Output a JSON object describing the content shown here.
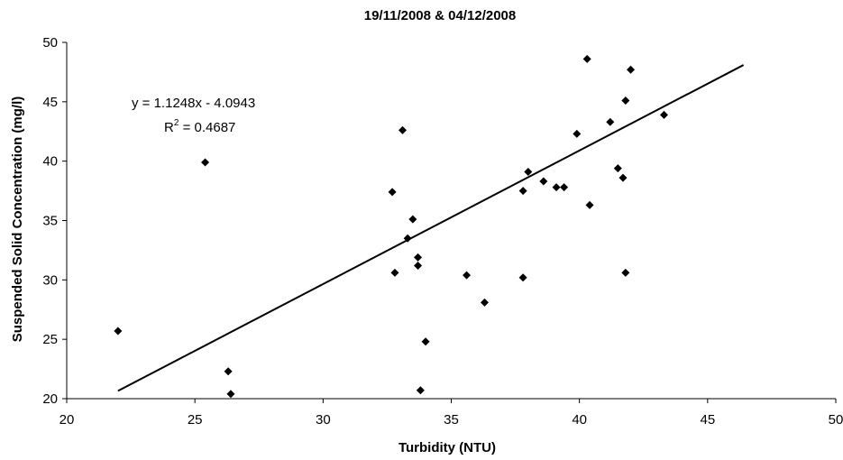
{
  "chart_data": {
    "type": "scatter",
    "title": "19/11/2008 & 04/12/2008",
    "xlabel": "Turbidity (NTU)",
    "ylabel": "Suspended Solid Concentration (mg/l)",
    "xlim": [
      20,
      50
    ],
    "ylim": [
      20,
      50
    ],
    "xticks": [
      20,
      25,
      30,
      35,
      40,
      45,
      50
    ],
    "yticks": [
      20,
      25,
      30,
      35,
      40,
      45,
      50
    ],
    "grid": false,
    "marker_color": "#000000",
    "series": [
      {
        "values": [
          [
            22.0,
            25.7
          ],
          [
            25.4,
            39.9
          ],
          [
            26.3,
            22.3
          ],
          [
            26.4,
            20.4
          ],
          [
            32.7,
            37.4
          ],
          [
            32.8,
            30.6
          ],
          [
            33.1,
            42.6
          ],
          [
            33.3,
            33.5
          ],
          [
            33.5,
            35.1
          ],
          [
            33.7,
            31.2
          ],
          [
            33.7,
            31.9
          ],
          [
            33.8,
            20.7
          ],
          [
            34.0,
            24.8
          ],
          [
            35.6,
            30.4
          ],
          [
            36.3,
            28.1
          ],
          [
            37.8,
            30.2
          ],
          [
            37.8,
            37.5
          ],
          [
            38.0,
            39.1
          ],
          [
            38.6,
            38.3
          ],
          [
            39.1,
            37.8
          ],
          [
            39.4,
            37.8
          ],
          [
            39.9,
            42.3
          ],
          [
            40.3,
            48.6
          ],
          [
            40.4,
            36.3
          ],
          [
            41.2,
            43.3
          ],
          [
            41.5,
            39.4
          ],
          [
            41.7,
            38.6
          ],
          [
            41.8,
            30.6
          ],
          [
            41.8,
            45.1
          ],
          [
            42.0,
            47.7
          ],
          [
            43.3,
            43.9
          ]
        ]
      }
    ],
    "trendline": {
      "slope": 1.1248,
      "intercept": -4.0943,
      "x_range": [
        22.0,
        46.4
      ],
      "equation_label": "y = 1.1248x - 4.0943",
      "r2_prefix": "R",
      "r2_exponent": "2",
      "r2_value": " = 0.4687"
    }
  }
}
